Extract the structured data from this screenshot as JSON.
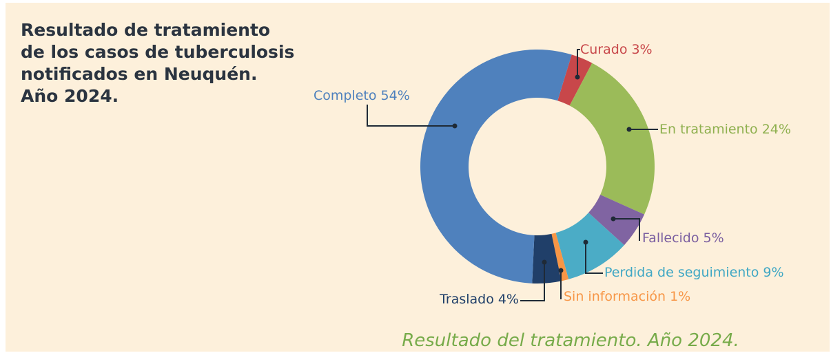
{
  "chart_data": {
    "type": "donut",
    "title": [
      "Resultado  de tratamiento",
      "de los casos de tuberculosis",
      "notificados en Neuquén.",
      "Año 2024."
    ],
    "caption": "Resultado del tratamiento. Año 2024.",
    "categories": [
      "Curado",
      "En tratamiento",
      "Fallecido",
      "Perdida de seguimiento",
      "Sin información",
      "Traslado",
      "Completo"
    ],
    "values": [
      3,
      24,
      5,
      9,
      1,
      4,
      54
    ],
    "value_labels": [
      "3%",
      "24%",
      "5%",
      "9%",
      "1%",
      "4%",
      "54%"
    ],
    "colors": [
      "#c8474a",
      "#9bbb59",
      "#8064a2",
      "#4bacc6",
      "#f79646",
      "#203f69",
      "#4f81bd"
    ]
  }
}
